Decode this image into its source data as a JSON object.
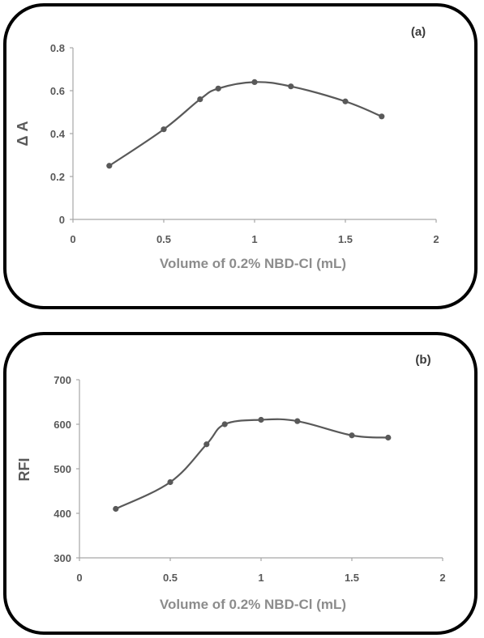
{
  "chart_data": [
    {
      "type": "line",
      "panel_label": "(a)",
      "xlabel": "Volume of 0.2% NBD-Cl (mL)",
      "ylabel": "Δ A",
      "xlim": [
        0,
        2
      ],
      "ylim": [
        0,
        0.8
      ],
      "xticks": [
        0,
        0.5,
        1,
        1.5,
        2
      ],
      "xtick_labels": [
        "0",
        "0.5",
        "1",
        "1.5",
        "2"
      ],
      "yticks": [
        0,
        0.2,
        0.4,
        0.6,
        0.8
      ],
      "ytick_labels": [
        "0",
        "0.2",
        "0.4",
        "0.6",
        "0.8"
      ],
      "grid": false,
      "series": [
        {
          "x": [
            0.2,
            0.5,
            0.7,
            0.8,
            1.0,
            1.2,
            1.5,
            1.7
          ],
          "y": [
            0.25,
            0.42,
            0.56,
            0.61,
            0.64,
            0.62,
            0.55,
            0.48
          ]
        }
      ],
      "color": "#595959"
    },
    {
      "type": "line",
      "panel_label": "(b)",
      "xlabel": "Volume of 0.2% NBD-Cl (mL)",
      "ylabel": "RFI",
      "xlim": [
        0,
        2
      ],
      "ylim": [
        300,
        700
      ],
      "xticks": [
        0,
        0.5,
        1,
        1.5,
        2
      ],
      "xtick_labels": [
        "0",
        "0.5",
        "1",
        "1.5",
        "2"
      ],
      "yticks": [
        300,
        400,
        500,
        600,
        700
      ],
      "ytick_labels": [
        "300",
        "400",
        "500",
        "600",
        "700"
      ],
      "grid": false,
      "series": [
        {
          "x": [
            0.2,
            0.5,
            0.7,
            0.8,
            1.0,
            1.2,
            1.5,
            1.7
          ],
          "y": [
            410,
            470,
            555,
            600,
            610,
            607,
            575,
            570
          ]
        }
      ],
      "color": "#595959"
    }
  ]
}
